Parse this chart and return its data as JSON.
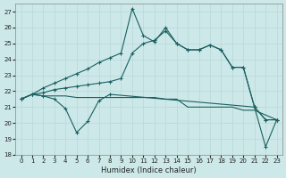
{
  "xlabel": "Humidex (Indice chaleur)",
  "bg_color": "#cde8e8",
  "grid_color": "#b8d8d8",
  "line_color": "#1a6060",
  "ylim": [
    18,
    27.5
  ],
  "xlim": [
    -0.5,
    23.5
  ],
  "yticks": [
    18,
    19,
    20,
    21,
    22,
    23,
    24,
    25,
    26,
    27
  ],
  "xticks": [
    0,
    1,
    2,
    3,
    4,
    5,
    6,
    7,
    8,
    9,
    10,
    11,
    12,
    13,
    14,
    15,
    16,
    17,
    18,
    19,
    20,
    21,
    22,
    23
  ],
  "lines": [
    {
      "x": [
        0,
        1,
        2,
        3,
        4,
        5,
        6,
        7,
        8,
        9,
        10,
        11,
        12,
        13,
        14,
        15,
        16,
        17,
        18,
        19,
        20,
        21,
        22,
        23
      ],
      "y": [
        21.5,
        21.8,
        21.7,
        21.7,
        21.7,
        21.6,
        21.6,
        21.6,
        21.6,
        21.6,
        21.6,
        21.6,
        21.6,
        21.5,
        21.5,
        21.0,
        21.0,
        21.0,
        21.0,
        21.0,
        20.8,
        20.8,
        20.5,
        20.2
      ],
      "marker": false
    },
    {
      "x": [
        0,
        1,
        2,
        3,
        4,
        5,
        6,
        7,
        8,
        9,
        10,
        11,
        12,
        13,
        14,
        15,
        16,
        17,
        18,
        19,
        20,
        21,
        22,
        23
      ],
      "y": [
        21.5,
        21.8,
        21.9,
        22.1,
        22.2,
        22.3,
        22.4,
        22.5,
        22.6,
        22.8,
        24.4,
        25.0,
        25.2,
        25.8,
        25.0,
        24.6,
        24.6,
        24.9,
        24.6,
        23.5,
        23.5,
        21.0,
        20.2,
        20.2
      ],
      "marker": true
    },
    {
      "x": [
        0,
        1,
        2,
        3,
        4,
        5,
        6,
        7,
        8,
        9,
        10,
        11,
        12,
        13,
        14,
        15,
        16,
        17,
        18,
        19,
        20,
        21,
        22,
        23
      ],
      "y": [
        21.5,
        21.8,
        22.2,
        22.5,
        22.8,
        23.1,
        23.4,
        23.8,
        24.1,
        24.4,
        27.2,
        25.5,
        25.1,
        26.0,
        25.0,
        24.6,
        24.6,
        24.9,
        24.6,
        23.5,
        23.5,
        21.0,
        20.2,
        20.2
      ],
      "marker": true
    },
    {
      "x": [
        0,
        1,
        2,
        3,
        4,
        5,
        6,
        7,
        8,
        21,
        22,
        23
      ],
      "y": [
        21.5,
        21.8,
        21.7,
        21.5,
        20.9,
        19.4,
        20.1,
        21.4,
        21.8,
        21.0,
        18.5,
        20.2
      ],
      "marker": true
    }
  ]
}
